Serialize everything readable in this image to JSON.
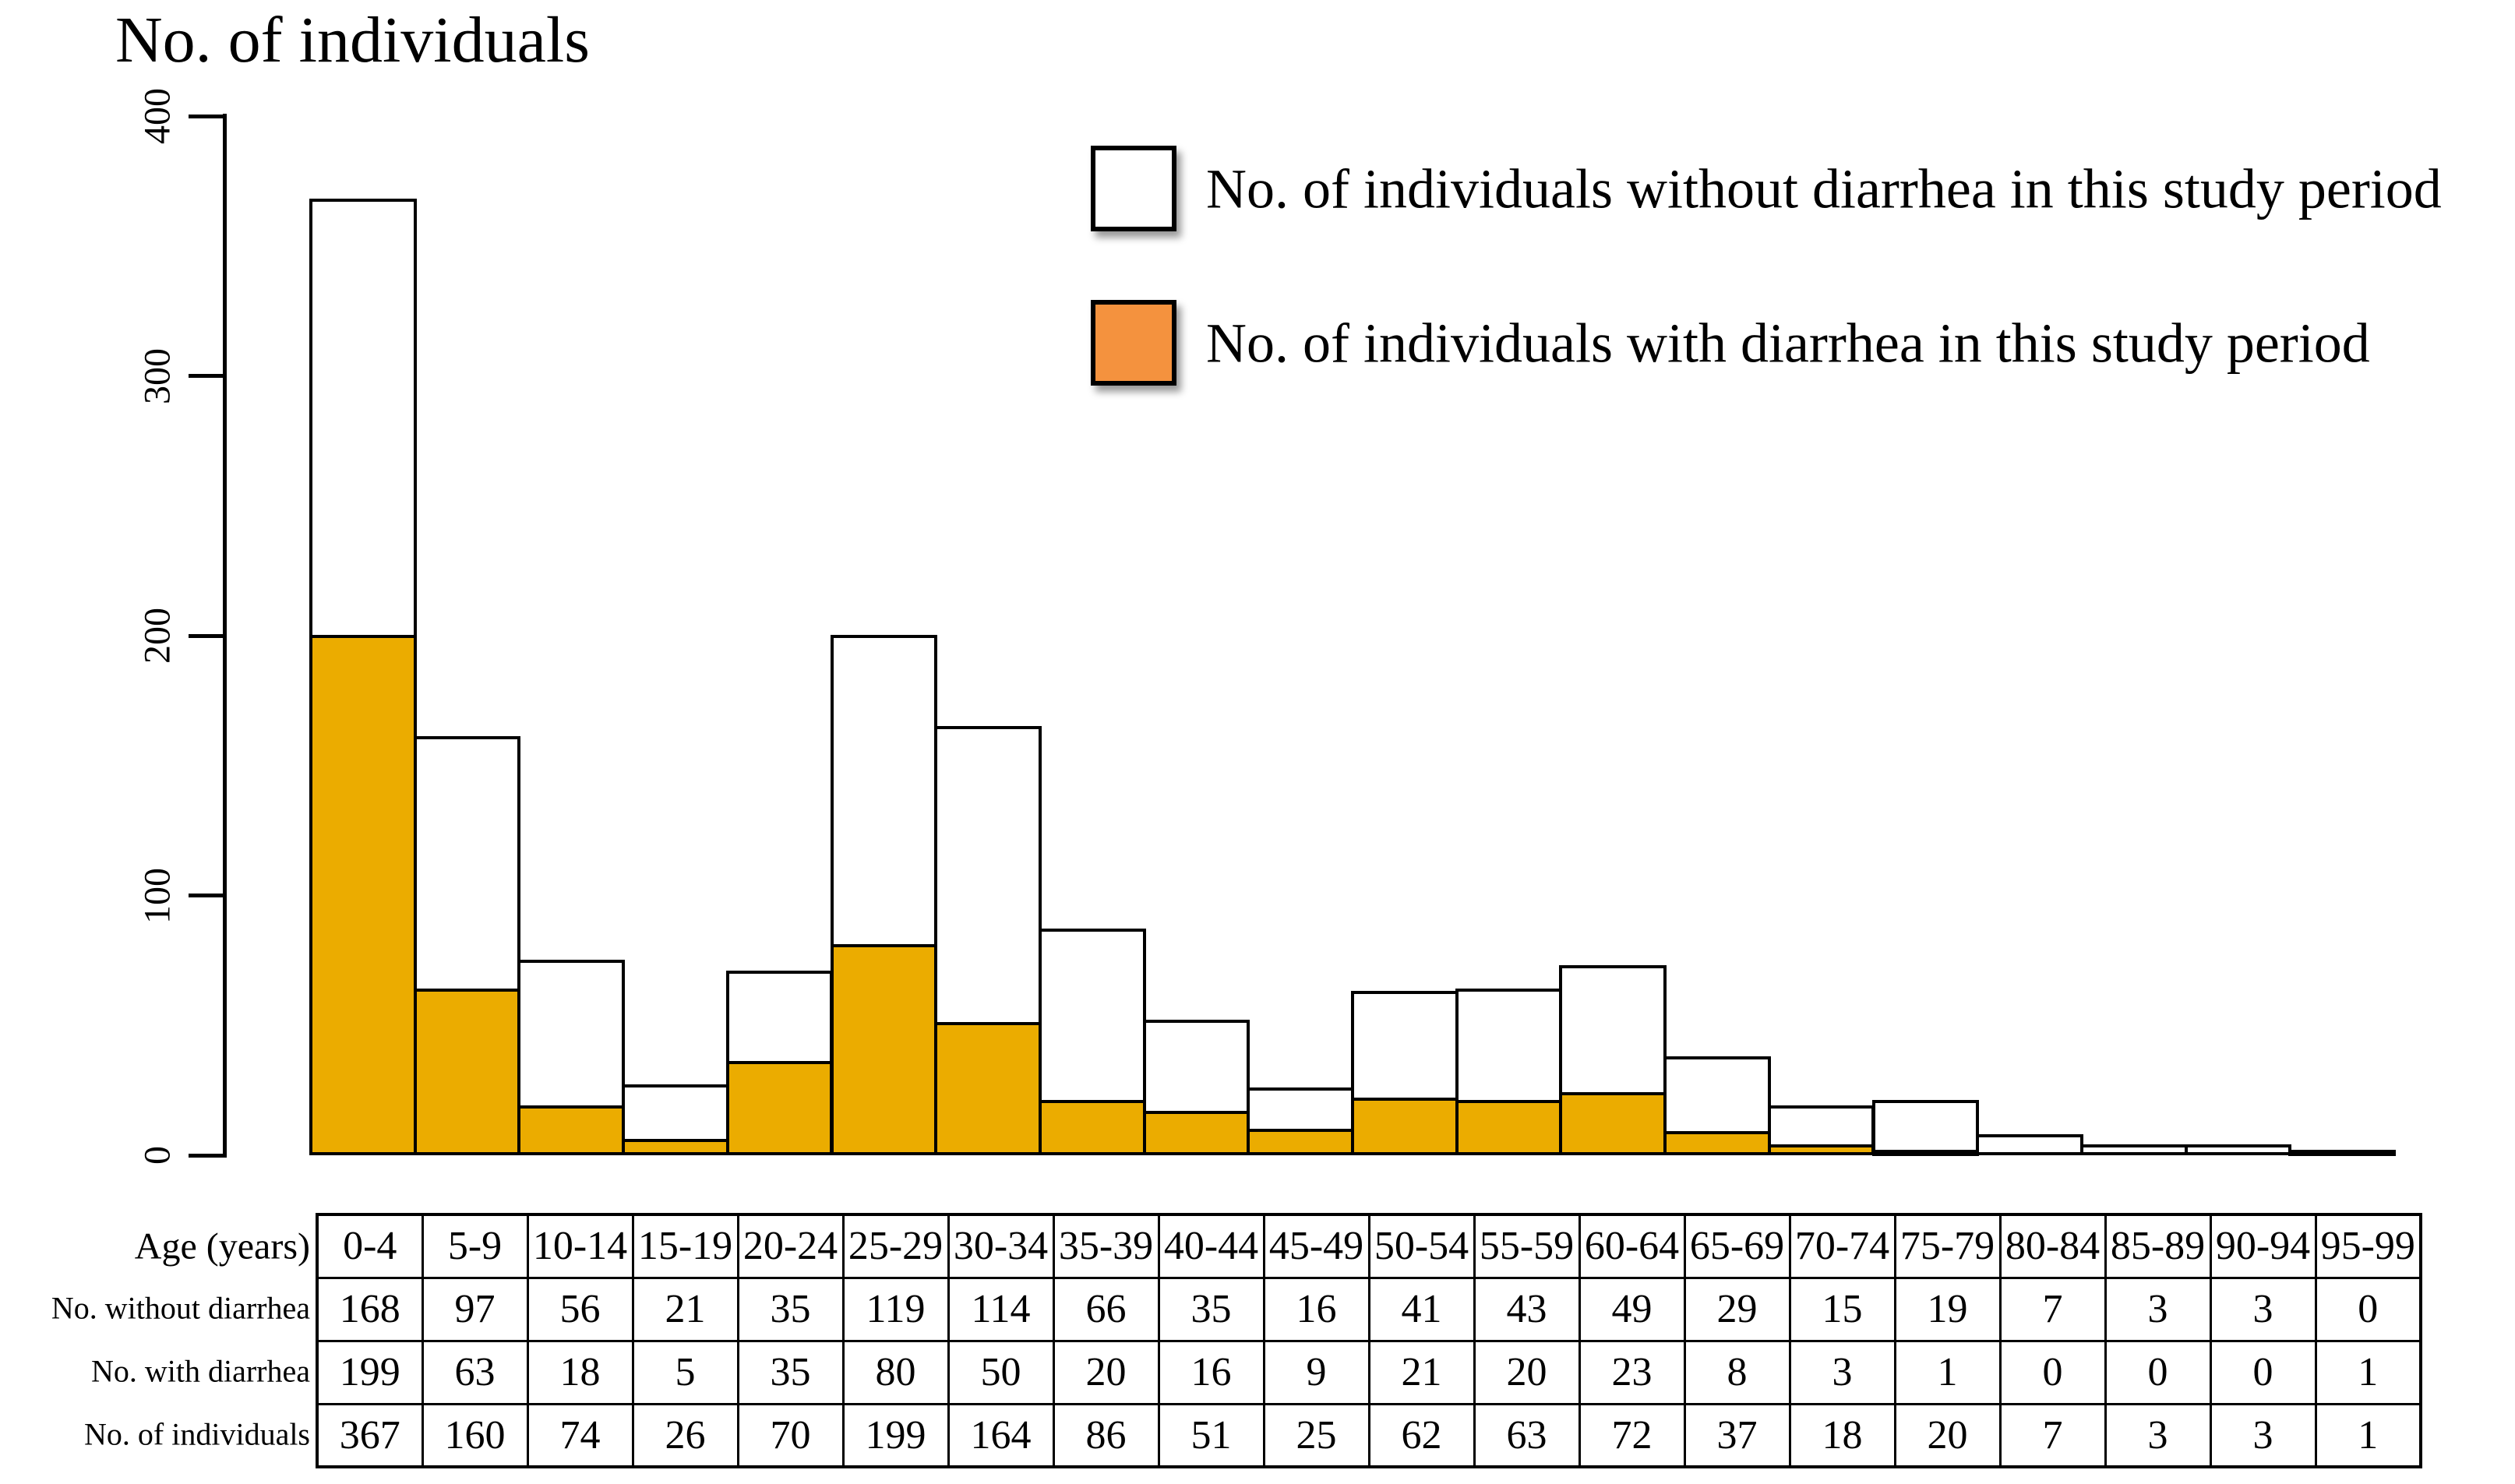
{
  "title": "No. of individuals",
  "colors": {
    "bar_with_diarrhea": "#EBAC00",
    "bar_without_diarrhea": "#FFFFFF",
    "legend_with_diarrhea": "#F4923E",
    "outline": "#000000"
  },
  "y_axis": {
    "ticks": [
      0,
      100,
      200,
      300,
      400
    ],
    "max": 400
  },
  "legend": {
    "items": [
      {
        "id": "without",
        "label": "No. of individuals without diarrhea in this study period",
        "swatch_color": "#FFFFFF"
      },
      {
        "id": "with",
        "label": "No. of individuals with diarrhea in this study period",
        "swatch_color": "#F4923E"
      }
    ]
  },
  "chart_data": {
    "type": "bar",
    "stacked": true,
    "title": "No. of individuals",
    "ylabel": "No. of individuals",
    "xlabel": "Age (years)",
    "ylim": [
      0,
      400
    ],
    "y_ticks": [
      0,
      100,
      200,
      300,
      400
    ],
    "grid": false,
    "legend_position": "top-right",
    "categories": [
      "0-4",
      "5-9",
      "10-14",
      "15-19",
      "20-24",
      "25-29",
      "30-34",
      "35-39",
      "40-44",
      "45-49",
      "50-54",
      "55-59",
      "60-64",
      "65-69",
      "70-74",
      "75-79",
      "80-84",
      "85-89",
      "90-94",
      "95-99"
    ],
    "series": [
      {
        "name": "No. with diarrhea",
        "color": "#EBAC00",
        "values": [
          199,
          63,
          18,
          5,
          35,
          80,
          50,
          20,
          16,
          9,
          21,
          20,
          23,
          8,
          3,
          1,
          0,
          0,
          0,
          1
        ]
      },
      {
        "name": "No. without diarrhea",
        "color": "#FFFFFF",
        "values": [
          168,
          97,
          56,
          21,
          35,
          119,
          114,
          66,
          35,
          16,
          41,
          43,
          49,
          29,
          15,
          19,
          7,
          3,
          3,
          0
        ]
      }
    ],
    "totals": [
      367,
      160,
      74,
      26,
      70,
      199,
      164,
      86,
      51,
      25,
      62,
      63,
      72,
      37,
      18,
      20,
      7,
      3,
      3,
      1
    ]
  },
  "table": {
    "rows": [
      {
        "label": "Age (years)",
        "values": [
          "0-4",
          "5-9",
          "10-14",
          "15-19",
          "20-24",
          "25-29",
          "30-34",
          "35-39",
          "40-44",
          "45-49",
          "50-54",
          "55-59",
          "60-64",
          "65-69",
          "70-74",
          "75-79",
          "80-84",
          "85-89",
          "90-94",
          "95-99"
        ]
      },
      {
        "label": "No. without diarrhea",
        "values": [
          "168",
          "97",
          "56",
          "21",
          "35",
          "119",
          "114",
          "66",
          "35",
          "16",
          "41",
          "43",
          "49",
          "29",
          "15",
          "19",
          "7",
          "3",
          "3",
          "0"
        ]
      },
      {
        "label": "No. with diarrhea",
        "values": [
          "199",
          "63",
          "18",
          "5",
          "35",
          "80",
          "50",
          "20",
          "16",
          "9",
          "21",
          "20",
          "23",
          "8",
          "3",
          "1",
          "0",
          "0",
          "0",
          "1"
        ]
      },
      {
        "label": "No. of individuals",
        "values": [
          "367",
          "160",
          "74",
          "26",
          "70",
          "199",
          "164",
          "86",
          "51",
          "25",
          "62",
          "63",
          "72",
          "37",
          "18",
          "20",
          "7",
          "3",
          "3",
          "1"
        ]
      }
    ]
  }
}
